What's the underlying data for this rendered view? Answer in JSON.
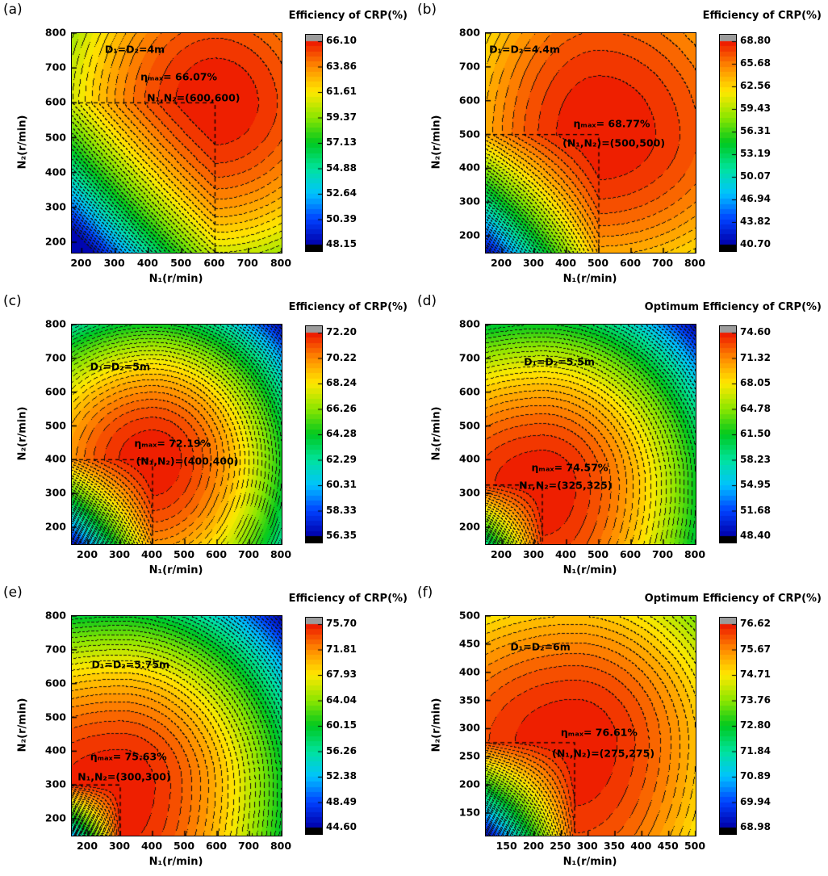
{
  "figure": {
    "background": "#ffffff",
    "contour_line_color": "#000000",
    "crosshair_line_color": "#000000",
    "colorbar_top_cap_color": "#9c9c9c",
    "colorbar_bottom_cap_color": "#000000"
  },
  "chart_data": {
    "type": "heatmap",
    "description": "Six filled contour maps of counter-rotating propeller (CRP) efficiency versus rotation speeds N1 and N2 for different propeller diameters, with dashed contour lines and dashed crosshairs marking the optimum point.",
    "contour_levels": 40,
    "grid": false,
    "colormap_stops": [
      {
        "t": 0.0,
        "color": "#0000a8"
      },
      {
        "t": 0.125,
        "color": "#0040ff"
      },
      {
        "t": 0.25,
        "color": "#00c3ff"
      },
      {
        "t": 0.375,
        "color": "#00e39c"
      },
      {
        "t": 0.5,
        "color": "#00c81e"
      },
      {
        "t": 0.625,
        "color": "#8ce600"
      },
      {
        "t": 0.75,
        "color": "#ffe800"
      },
      {
        "t": 0.875,
        "color": "#ff8a00"
      },
      {
        "t": 1.0,
        "color": "#ec1300"
      }
    ],
    "panels": [
      {
        "id": "a",
        "label": "(a)",
        "colorbar_title": "Efficiency of CRP(%)",
        "x_label": "N₁(r/min)",
        "y_label": "N₂(r/min)",
        "x_range": [
          170,
          800
        ],
        "y_range": [
          170,
          800
        ],
        "x_ticks": [
          200,
          300,
          400,
          500,
          600,
          700,
          800
        ],
        "y_ticks": [
          200,
          300,
          400,
          500,
          600,
          700,
          800
        ],
        "colorbar_ticks": [
          "66.10",
          "63.86",
          "61.61",
          "59.37",
          "57.13",
          "54.88",
          "52.64",
          "50.39",
          "48.15"
        ],
        "scale_min": 48.15,
        "scale_max": 66.1,
        "eta_max_value": 66.07,
        "optimum_n1": 600,
        "optimum_n2": 600,
        "annotations": {
          "diameter": "D₁=D₂=4m",
          "eta": "ηₘₐₓ= 66.07%",
          "point": "N₁,N₂=(600,600)"
        },
        "annotation_pos": {
          "diameter": [
            30,
            7.5
          ],
          "eta": [
            51,
            20
          ],
          "point": [
            58,
            29.5
          ]
        },
        "model": {
          "kl": 10.5,
          "kh": 9.0,
          "cross": 19.3
        }
      },
      {
        "id": "b",
        "label": "(b)",
        "colorbar_title": "Efficiency of CRP(%)",
        "x_label": "N₁(r/min)",
        "y_label": "N₂(r/min)",
        "x_range": [
          150,
          800
        ],
        "y_range": [
          150,
          800
        ],
        "x_ticks": [
          200,
          300,
          400,
          500,
          600,
          700,
          800
        ],
        "y_ticks": [
          200,
          300,
          400,
          500,
          600,
          700,
          800
        ],
        "colorbar_ticks": [
          "68.80",
          "65.68",
          "62.56",
          "59.43",
          "56.31",
          "53.19",
          "50.07",
          "46.94",
          "43.82",
          "40.70"
        ],
        "scale_min": 40.7,
        "scale_max": 68.8,
        "eta_max_value": 68.77,
        "optimum_n1": 500,
        "optimum_n2": 500,
        "annotations": {
          "diameter": "D₁=D₂=4.4m",
          "eta": "ηₘₐₓ= 68.77%",
          "point": "(N₁,N₂)=(500,500)"
        },
        "annotation_pos": {
          "diameter": [
            18.5,
            7.5
          ],
          "eta": [
            60,
            41
          ],
          "point": [
            61,
            50
          ]
        },
        "model": {
          "kl": 9.6,
          "kh": 5.5,
          "cross": 38
        }
      },
      {
        "id": "c",
        "label": "(c)",
        "colorbar_title": "Efficiency of CRP(%)",
        "x_label": "N₁(r/min)",
        "y_label": "N₂(r/min)",
        "x_range": [
          150,
          800
        ],
        "y_range": [
          150,
          800
        ],
        "x_ticks": [
          200,
          300,
          400,
          500,
          600,
          700,
          800
        ],
        "y_ticks": [
          200,
          300,
          400,
          500,
          600,
          700,
          800
        ],
        "colorbar_ticks": [
          "72.20",
          "70.22",
          "68.24",
          "66.26",
          "64.28",
          "62.29",
          "60.31",
          "58.33",
          "56.35"
        ],
        "scale_min": 56.35,
        "scale_max": 72.2,
        "eta_max_value": 72.19,
        "optimum_n1": 400,
        "optimum_n2": 400,
        "annotations": {
          "diameter": "D₁=D₂=5m",
          "eta": "ηₘₐₓ= 72.19%",
          "point": "(N₁,N₂)=(400,400)"
        },
        "annotation_pos": {
          "diameter": [
            23,
            19
          ],
          "eta": [
            48,
            54
          ],
          "point": [
            55,
            62
          ]
        },
        "model": {
          "kl": 5.6,
          "kh": 7.8,
          "cross": 29
        }
      },
      {
        "id": "d",
        "label": "(d)",
        "colorbar_title": "Optimum Efficiency of CRP(%)",
        "x_label": "N₁(r/min)",
        "y_label": "N₂(r/min)",
        "x_range": [
          150,
          800
        ],
        "y_range": [
          150,
          800
        ],
        "x_ticks": [
          200,
          300,
          400,
          500,
          600,
          700,
          800
        ],
        "y_ticks": [
          200,
          300,
          400,
          500,
          600,
          700,
          800
        ],
        "colorbar_ticks": [
          "74.60",
          "71.32",
          "68.05",
          "64.78",
          "61.50",
          "58.23",
          "54.95",
          "51.68",
          "48.40"
        ],
        "scale_min": 48.4,
        "scale_max": 74.6,
        "eta_max_value": 74.57,
        "optimum_n1": 325,
        "optimum_n2": 325,
        "annotations": {
          "diameter": "D₁=D₂=5.5m",
          "eta": "ηₘₐₓ= 74.57%",
          "point": "N₁,N₂=(325,325)"
        },
        "annotation_pos": {
          "diameter": [
            35,
            17
          ],
          "eta": [
            40,
            65
          ],
          "point": [
            38,
            73
          ]
        },
        "model": {
          "kl": 3.0,
          "kh": 6.1,
          "cross": 49
        }
      },
      {
        "id": "e",
        "label": "(e)",
        "colorbar_title": "Efficiency of CRP(%)",
        "x_label": "N₁(r/min)",
        "y_label": "N₂(r/min)",
        "x_range": [
          150,
          800
        ],
        "y_range": [
          150,
          800
        ],
        "x_ticks": [
          200,
          300,
          400,
          500,
          600,
          700,
          800
        ],
        "y_ticks": [
          200,
          300,
          400,
          500,
          600,
          700,
          800
        ],
        "colorbar_ticks": [
          "75.70",
          "71.81",
          "67.93",
          "64.04",
          "60.15",
          "56.26",
          "52.38",
          "48.49",
          "44.60"
        ],
        "scale_min": 44.6,
        "scale_max": 75.7,
        "eta_max_value": 75.63,
        "optimum_n1": 300,
        "optimum_n2": 300,
        "annotations": {
          "diameter": "D₁=D₂=5.75m",
          "eta": "ηₘₐₓ= 75.63%",
          "point": "N₁,N₂=(300,300)"
        },
        "annotation_pos": {
          "diameter": [
            28,
            22
          ],
          "eta": [
            27,
            64
          ],
          "point": [
            25,
            73
          ]
        },
        "model": {
          "kl": 2.0,
          "kh": 5.6,
          "cross": 94
        }
      },
      {
        "id": "f",
        "label": "(f)",
        "colorbar_title": "Optimum Efficiency of CRP(%)",
        "x_label": "N₁(r/min)",
        "y_label": "N₂(r/min)",
        "x_range": [
          110,
          500
        ],
        "y_range": [
          110,
          500
        ],
        "x_ticks": [
          150,
          200,
          250,
          300,
          350,
          400,
          450,
          500
        ],
        "y_ticks": [
          150,
          200,
          250,
          300,
          350,
          400,
          450,
          500
        ],
        "colorbar_ticks": [
          "76.62",
          "75.67",
          "74.71",
          "73.76",
          "72.80",
          "71.84",
          "70.89",
          "69.94",
          "68.98"
        ],
        "scale_min": 68.98,
        "scale_max": 76.62,
        "eta_max_value": 76.61,
        "optimum_n1": 275,
        "optimum_n2": 275,
        "annotations": {
          "diameter": "D₁=D₂=6m",
          "eta": "ηₘₐₓ= 76.61%",
          "point": "(N₁,N₂)=(275,275)"
        },
        "annotation_pos": {
          "diameter": [
            26,
            14
          ],
          "eta": [
            54,
            53
          ],
          "point": [
            56,
            62.5
          ]
        },
        "model": {
          "kl": 1.1,
          "kh": 2.25,
          "cross": 19
        }
      }
    ]
  }
}
